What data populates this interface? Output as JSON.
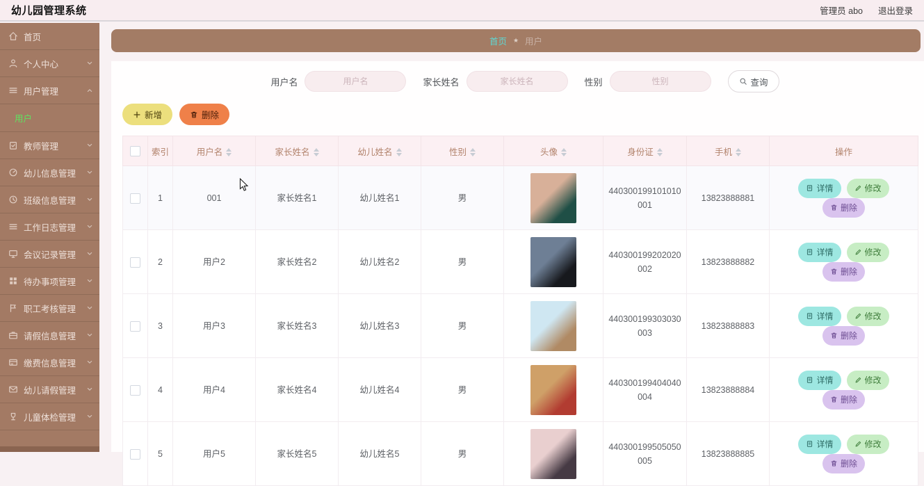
{
  "app": {
    "title": "幼儿园管理系统",
    "admin_label": "管理员 abo",
    "logout_label": "退出登录"
  },
  "colors": {
    "sidebar": "#a37a64",
    "breadcrumb_home": "#5fd6d1",
    "submenu_active_text": "#5fe35f",
    "add_button": "#ecdf7d",
    "delete_button": "#ef8049",
    "detail_button": "#9de7e1",
    "edit_button": "#c7edc4",
    "row_delete_button": "#d9c3ee"
  },
  "sidebar": {
    "items": [
      {
        "label": "首页",
        "icon": "home",
        "expandable": false
      },
      {
        "label": "个人中心",
        "icon": "person",
        "expandable": true
      },
      {
        "label": "用户管理",
        "icon": "menu",
        "expandable": true,
        "expanded": true,
        "children": [
          {
            "label": "用户",
            "active": true
          }
        ]
      },
      {
        "label": "教师管理",
        "icon": "clipboard",
        "expandable": true
      },
      {
        "label": "幼儿信息管理",
        "icon": "gauge",
        "expandable": true
      },
      {
        "label": "班级信息管理",
        "icon": "clock",
        "expandable": true
      },
      {
        "label": "工作日志管理",
        "icon": "menu",
        "expandable": true
      },
      {
        "label": "会议记录管理",
        "icon": "monitor",
        "expandable": true
      },
      {
        "label": "待办事项管理",
        "icon": "grid",
        "expandable": true
      },
      {
        "label": "职工考核管理",
        "icon": "flag",
        "expandable": true
      },
      {
        "label": "请假信息管理",
        "icon": "briefcase",
        "expandable": true
      },
      {
        "label": "缴费信息管理",
        "icon": "card",
        "expandable": true
      },
      {
        "label": "幼儿请假管理",
        "icon": "mail",
        "expandable": true
      },
      {
        "label": "儿童体检管理",
        "icon": "cup",
        "expandable": true
      }
    ]
  },
  "breadcrumb": {
    "home": "首页",
    "separator": "★",
    "current": "用户"
  },
  "search": {
    "fields": [
      {
        "label": "用户名",
        "placeholder": "用户名"
      },
      {
        "label": "家长姓名",
        "placeholder": "家长姓名"
      },
      {
        "label": "性别",
        "placeholder": "性别"
      }
    ],
    "query_label": "查询"
  },
  "toolbar": {
    "add_label": "新增",
    "delete_label": "删除"
  },
  "table": {
    "columns": [
      {
        "label": "",
        "type": "checkbox",
        "sortable": false
      },
      {
        "label": "索引",
        "sortable": false
      },
      {
        "label": "用户名",
        "sortable": true
      },
      {
        "label": "家长姓名",
        "sortable": true
      },
      {
        "label": "幼儿姓名",
        "sortable": true
      },
      {
        "label": "性别",
        "sortable": true
      },
      {
        "label": "头像",
        "sortable": true
      },
      {
        "label": "身份证",
        "sortable": true
      },
      {
        "label": "手机",
        "sortable": true
      },
      {
        "label": "操作",
        "sortable": false
      }
    ],
    "actions": {
      "detail_label": "详情",
      "edit_label": "修改",
      "delete_label": "删除"
    },
    "rows": [
      {
        "index": "1",
        "username": "001",
        "parent_name": "家长姓名1",
        "child_name": "幼儿姓名1",
        "gender": "男",
        "id_card": "440300199101010001",
        "phone": "13823888881",
        "avatar_colors": [
          "#d8b099",
          "#1f4f46"
        ],
        "hovered": true
      },
      {
        "index": "2",
        "username": "用户2",
        "parent_name": "家长姓名2",
        "child_name": "幼儿姓名2",
        "gender": "男",
        "id_card": "440300199202020002",
        "phone": "13823888882",
        "avatar_colors": [
          "#6e7f95",
          "#17191d"
        ],
        "hovered": false
      },
      {
        "index": "3",
        "username": "用户3",
        "parent_name": "家长姓名3",
        "child_name": "幼儿姓名3",
        "gender": "男",
        "id_card": "440300199303030003",
        "phone": "13823888883",
        "avatar_colors": [
          "#cfe7f2",
          "#b08a64"
        ],
        "hovered": false
      },
      {
        "index": "4",
        "username": "用户4",
        "parent_name": "家长姓名4",
        "child_name": "幼儿姓名4",
        "gender": "男",
        "id_card": "440300199404040004",
        "phone": "13823888884",
        "avatar_colors": [
          "#cfa068",
          "#b23c31"
        ],
        "hovered": false
      },
      {
        "index": "5",
        "username": "用户5",
        "parent_name": "家长姓名5",
        "child_name": "幼儿姓名5",
        "gender": "男",
        "id_card": "440300199505050005",
        "phone": "13823888885",
        "avatar_colors": [
          "#e9cfcf",
          "#463a44"
        ],
        "hovered": false
      }
    ]
  }
}
